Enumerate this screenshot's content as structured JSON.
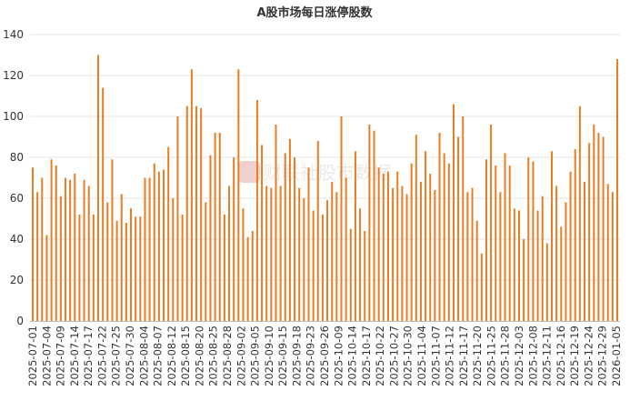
{
  "chart_data": {
    "type": "bar",
    "title": "A股市场每日涨停股数",
    "xlabel": "",
    "ylabel": "",
    "ylim": [
      0,
      140
    ],
    "yticks": [
      0,
      20,
      40,
      60,
      80,
      100,
      120,
      140
    ],
    "grid": true,
    "legend": "none",
    "bar_color": "#e87e24",
    "watermark": "财联社股市数据",
    "tick_labels": [
      "2025-07-01",
      "2025-07-04",
      "2025-07-09",
      "2025-07-14",
      "2025-07-17",
      "2025-07-22",
      "2025-07-25",
      "2025-07-30",
      "2025-08-04",
      "2025-08-07",
      "2025-08-12",
      "2025-08-15",
      "2025-08-20",
      "2025-08-25",
      "2025-08-28",
      "2025-09-02",
      "2025-09-05",
      "2025-09-10",
      "2025-09-15",
      "2025-09-18",
      "2025-09-23",
      "2025-09-26",
      "2025-10-09",
      "2025-10-14",
      "2025-10-17",
      "2025-10-22",
      "2025-10-27",
      "2025-10-30",
      "2025-11-04",
      "2025-11-07",
      "2025-11-12",
      "2025-11-17",
      "2025-11-20",
      "2025-11-25",
      "2025-11-28",
      "2025-12-03",
      "2025-12-08",
      "2025-12-11",
      "2025-12-16",
      "2025-12-19",
      "2025-12-24",
      "2025-12-29",
      "2026-01-05"
    ],
    "values": [
      75,
      63,
      70,
      42,
      79,
      76,
      61,
      70,
      69,
      72,
      52,
      69,
      66,
      52,
      130,
      114,
      58,
      79,
      49,
      62,
      48,
      55,
      51,
      51,
      70,
      70,
      77,
      73,
      74,
      85,
      60,
      100,
      52,
      105,
      123,
      105,
      104,
      58,
      81,
      92,
      92,
      52,
      66,
      80,
      123,
      55,
      41,
      44,
      108,
      86,
      66,
      65,
      96,
      66,
      82,
      89,
      80,
      65,
      60,
      75,
      54,
      88,
      52,
      59,
      68,
      63,
      100,
      70,
      45,
      83,
      55,
      44,
      96,
      93,
      75,
      72,
      73,
      65,
      73,
      66,
      62,
      77,
      91,
      68,
      83,
      72,
      64,
      92,
      82,
      77,
      106,
      90,
      100,
      63,
      65,
      49,
      33,
      79,
      96,
      76,
      63,
      82,
      76,
      55,
      54,
      40,
      80,
      78,
      54,
      61,
      38,
      83,
      66,
      46,
      58,
      73,
      84,
      105,
      68,
      87,
      96,
      92,
      90,
      67,
      63,
      128
    ]
  }
}
